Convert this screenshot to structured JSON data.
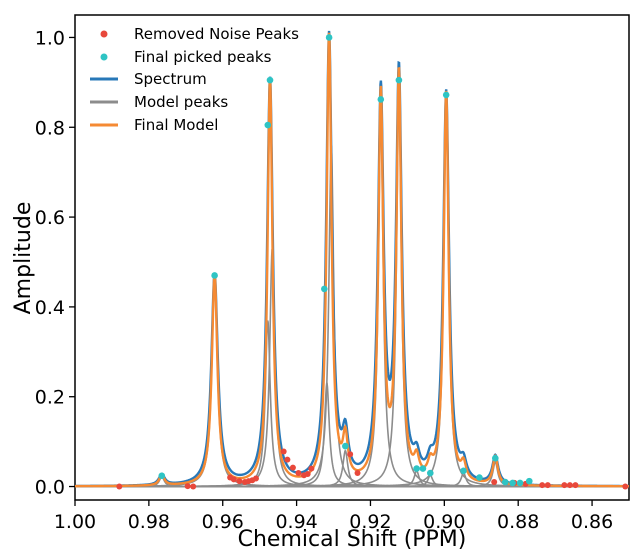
{
  "chart_data": {
    "type": "line",
    "xlabel": "Chemical Shift (PPM)",
    "ylabel": "Amplitude",
    "xlim": [
      1.0,
      0.85
    ],
    "ylim": [
      -0.03,
      1.05
    ],
    "x_reversed": true,
    "grid": false,
    "legend_position": "top-left",
    "x_ticks": [
      "1.00",
      "0.98",
      "0.96",
      "0.94",
      "0.92",
      "0.90",
      "0.88",
      "0.86"
    ],
    "y_ticks": [
      "0.0",
      "0.2",
      "0.4",
      "0.6",
      "0.8",
      "1.0"
    ],
    "colors": {
      "removed_noise": "#e8483b",
      "picked": "#2ec4c4",
      "spectrum": "#2878b8",
      "model_peaks": "#8c8c8c",
      "final_model": "#f58a33"
    },
    "legend": [
      {
        "label": "Removed Noise Peaks",
        "kind": "dot",
        "color": "#e8483b"
      },
      {
        "label": "Final picked peaks",
        "kind": "dot",
        "color": "#2ec4c4"
      },
      {
        "label": "Spectrum",
        "kind": "line",
        "color": "#2878b8"
      },
      {
        "label": "Model peaks",
        "kind": "line",
        "color": "#8c8c8c"
      },
      {
        "label": "Final Model",
        "kind": "line",
        "color": "#f58a33"
      }
    ],
    "series": [
      {
        "name": "Final Model",
        "peaks": [
          {
            "x": 0.9765,
            "height": 0.024,
            "w": 0.0008
          },
          {
            "x": 0.9622,
            "height": 0.47,
            "w": 0.0009
          },
          {
            "x": 0.9472,
            "height": 0.905,
            "w": 0.0008
          },
          {
            "x": 0.9312,
            "height": 1.0,
            "w": 0.0008
          },
          {
            "x": 0.9268,
            "height": 0.09,
            "w": 0.0008
          },
          {
            "x": 0.9172,
            "height": 0.862,
            "w": 0.0008
          },
          {
            "x": 0.9123,
            "height": 0.905,
            "w": 0.0008
          },
          {
            "x": 0.9075,
            "height": 0.04,
            "w": 0.0008
          },
          {
            "x": 0.9038,
            "height": 0.03,
            "w": 0.0008
          },
          {
            "x": 0.8995,
            "height": 0.872,
            "w": 0.0008
          },
          {
            "x": 0.8948,
            "height": 0.035,
            "w": 0.0008
          },
          {
            "x": 0.8862,
            "height": 0.063,
            "w": 0.0008
          }
        ]
      },
      {
        "name": "Model peaks",
        "peaks": [
          {
            "x": 0.9765,
            "height": 0.022,
            "w": 0.0008
          },
          {
            "x": 0.9622,
            "height": 0.46,
            "w": 0.0009
          },
          {
            "x": 0.9478,
            "height": 0.37,
            "w": 0.0008
          },
          {
            "x": 0.9466,
            "height": 0.53,
            "w": 0.0008
          },
          {
            "x": 0.9318,
            "height": 0.23,
            "w": 0.0008
          },
          {
            "x": 0.9306,
            "height": 0.76,
            "w": 0.0008
          },
          {
            "x": 0.9268,
            "height": 0.08,
            "w": 0.0008
          },
          {
            "x": 0.9172,
            "height": 0.82,
            "w": 0.0008
          },
          {
            "x": 0.9123,
            "height": 0.86,
            "w": 0.0008
          },
          {
            "x": 0.9075,
            "height": 0.035,
            "w": 0.0008
          },
          {
            "x": 0.9038,
            "height": 0.025,
            "w": 0.0008
          },
          {
            "x": 0.8995,
            "height": 0.84,
            "w": 0.0008
          },
          {
            "x": 0.8948,
            "height": 0.03,
            "w": 0.0008
          },
          {
            "x": 0.8862,
            "height": 0.055,
            "w": 0.0008
          }
        ]
      },
      {
        "name": "Removed Noise Peaks",
        "points": [
          [
            0.988,
            0.0
          ],
          [
            0.9695,
            0.001
          ],
          [
            0.968,
            0.0
          ],
          [
            0.958,
            0.02
          ],
          [
            0.957,
            0.016
          ],
          [
            0.9555,
            0.012
          ],
          [
            0.954,
            0.01
          ],
          [
            0.953,
            0.012
          ],
          [
            0.952,
            0.014
          ],
          [
            0.951,
            0.018
          ],
          [
            0.9435,
            0.078
          ],
          [
            0.9425,
            0.06
          ],
          [
            0.941,
            0.042
          ],
          [
            0.9395,
            0.03
          ],
          [
            0.938,
            0.025
          ],
          [
            0.937,
            0.028
          ],
          [
            0.936,
            0.04
          ],
          [
            0.9255,
            0.072
          ],
          [
            0.9235,
            0.03
          ],
          [
            0.8865,
            0.01
          ],
          [
            0.881,
            0.008
          ],
          [
            0.878,
            0.006
          ],
          [
            0.8735,
            0.003
          ],
          [
            0.872,
            0.003
          ],
          [
            0.8675,
            0.003
          ],
          [
            0.866,
            0.003
          ],
          [
            0.8645,
            0.003
          ],
          [
            0.851,
            0.0
          ]
        ]
      },
      {
        "name": "Final picked peaks",
        "points": [
          [
            0.9765,
            0.024
          ],
          [
            0.9622,
            0.47
          ],
          [
            0.9472,
            0.905
          ],
          [
            0.9478,
            0.805
          ],
          [
            0.9312,
            1.0
          ],
          [
            0.9325,
            0.44
          ],
          [
            0.9268,
            0.09
          ],
          [
            0.9172,
            0.862
          ],
          [
            0.9123,
            0.905
          ],
          [
            0.9075,
            0.04
          ],
          [
            0.9058,
            0.04
          ],
          [
            0.9038,
            0.03
          ],
          [
            0.8995,
            0.872
          ],
          [
            0.8948,
            0.035
          ],
          [
            0.8905,
            0.02
          ],
          [
            0.8862,
            0.063
          ],
          [
            0.8835,
            0.01
          ],
          [
            0.8815,
            0.008
          ],
          [
            0.8795,
            0.008
          ],
          [
            0.877,
            0.012
          ]
        ]
      }
    ]
  }
}
